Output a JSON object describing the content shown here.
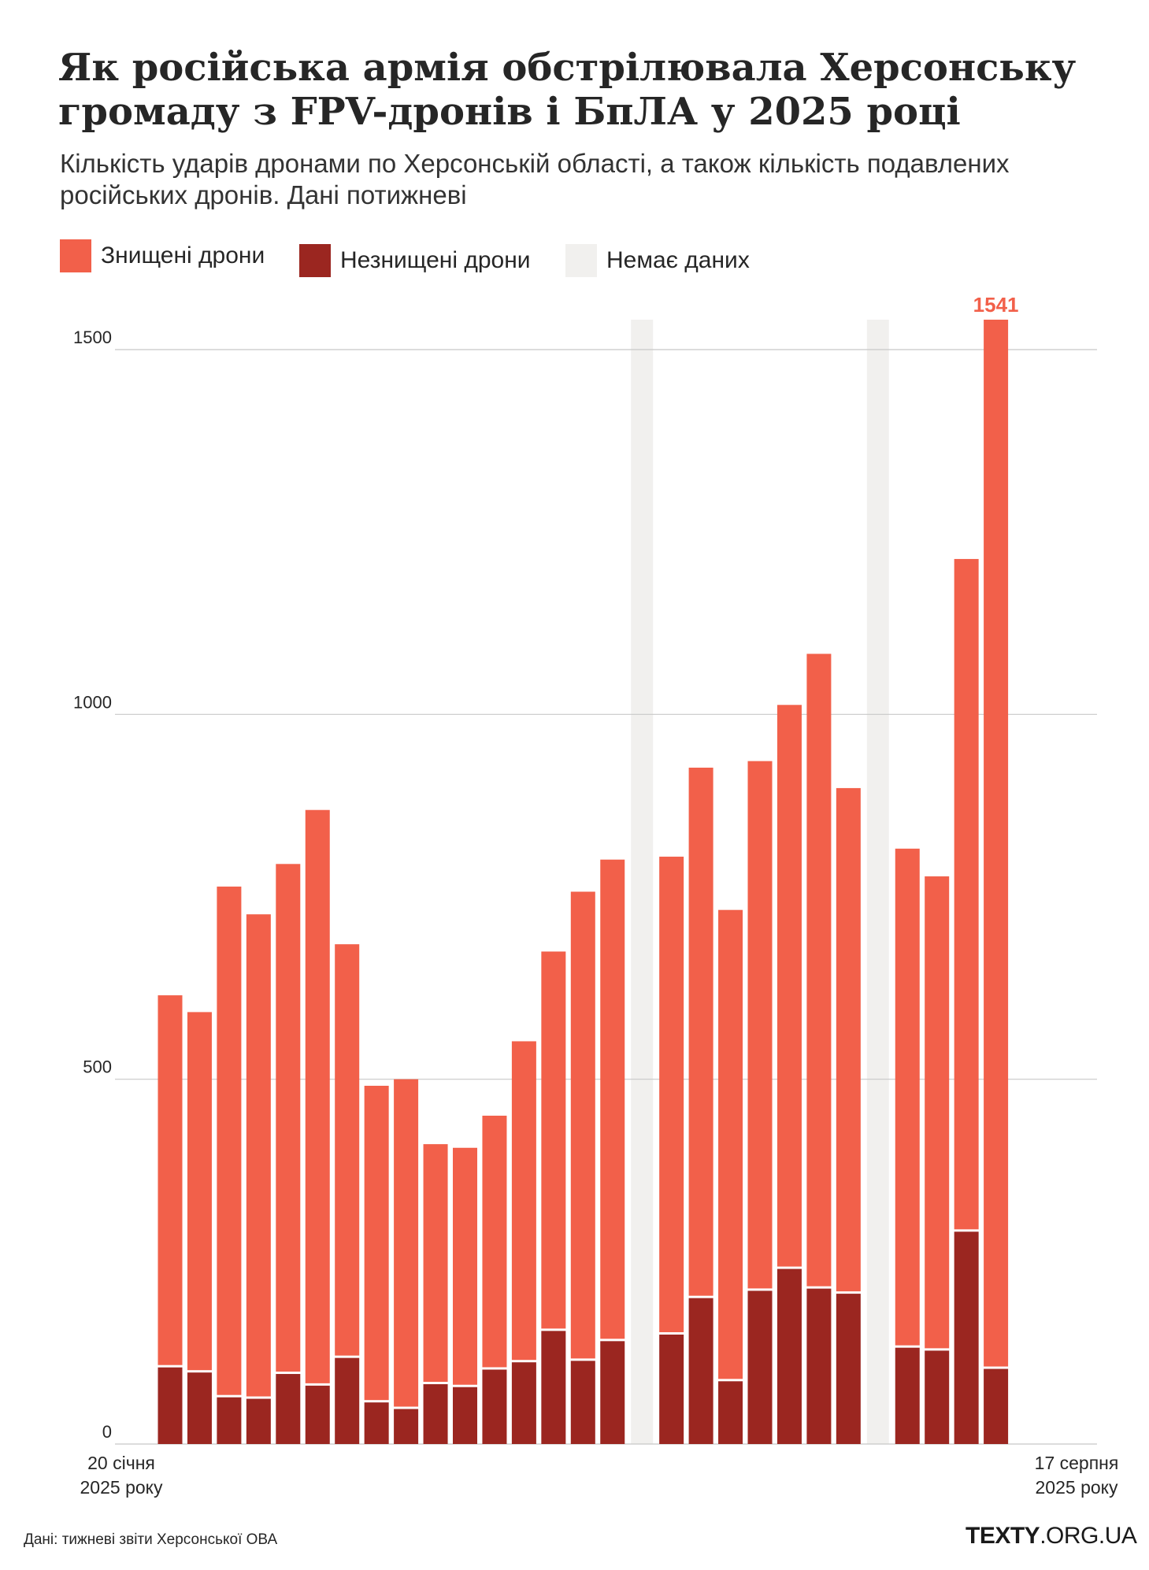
{
  "title": "Як російська армія обстрілювала Херсонську громаду з FPV-дронів і БпЛА у 2025 році",
  "subtitle": "Кількість ударів дронами по Херсонській області, а також кількість подавлених російських дронів. Дані потижневі",
  "legend": [
    {
      "label": "Знищені дрони",
      "color": "#f2604a"
    },
    {
      "label": "Незнищені дрони",
      "color": "#9b2620"
    },
    {
      "label": "Немає даних",
      "color": "#f1f0ee"
    }
  ],
  "source": "Дані: тижневі звіти Херсонської ОВА",
  "logo": {
    "bold": "TEXTY",
    "rest": ".ORG.UA"
  },
  "chart_data": {
    "type": "bar",
    "stacked": true,
    "x_start_label": [
      "20 січня",
      "2025 року"
    ],
    "x_end_label": [
      "17 серпня",
      "2025 року"
    ],
    "yticks": [
      0,
      500,
      1000,
      1500
    ],
    "ylim": [
      0,
      1541
    ],
    "gridlines": true,
    "legend_position": "top-left",
    "peak_label": "1541",
    "series": [
      {
        "name": "Незнищені дрони",
        "color": "#9b2620",
        "values": [
          105,
          98,
          64,
          62,
          96,
          80,
          118,
          57,
          48,
          82,
          78,
          102,
          112,
          155,
          114,
          141,
          null,
          150,
          200,
          86,
          210,
          240,
          213,
          206,
          null,
          132,
          128,
          291,
          103
        ]
      },
      {
        "name": "Знищені дрони",
        "color": "#f2604a",
        "values": [
          510,
          494,
          700,
          664,
          699,
          789,
          567,
          434,
          452,
          329,
          328,
          348,
          440,
          520,
          643,
          660,
          null,
          655,
          727,
          646,
          726,
          773,
          870,
          693,
          null,
          684,
          650,
          922,
          1438
        ]
      }
    ],
    "no_data_weeks": [
      16,
      24
    ],
    "week_count": 29
  }
}
